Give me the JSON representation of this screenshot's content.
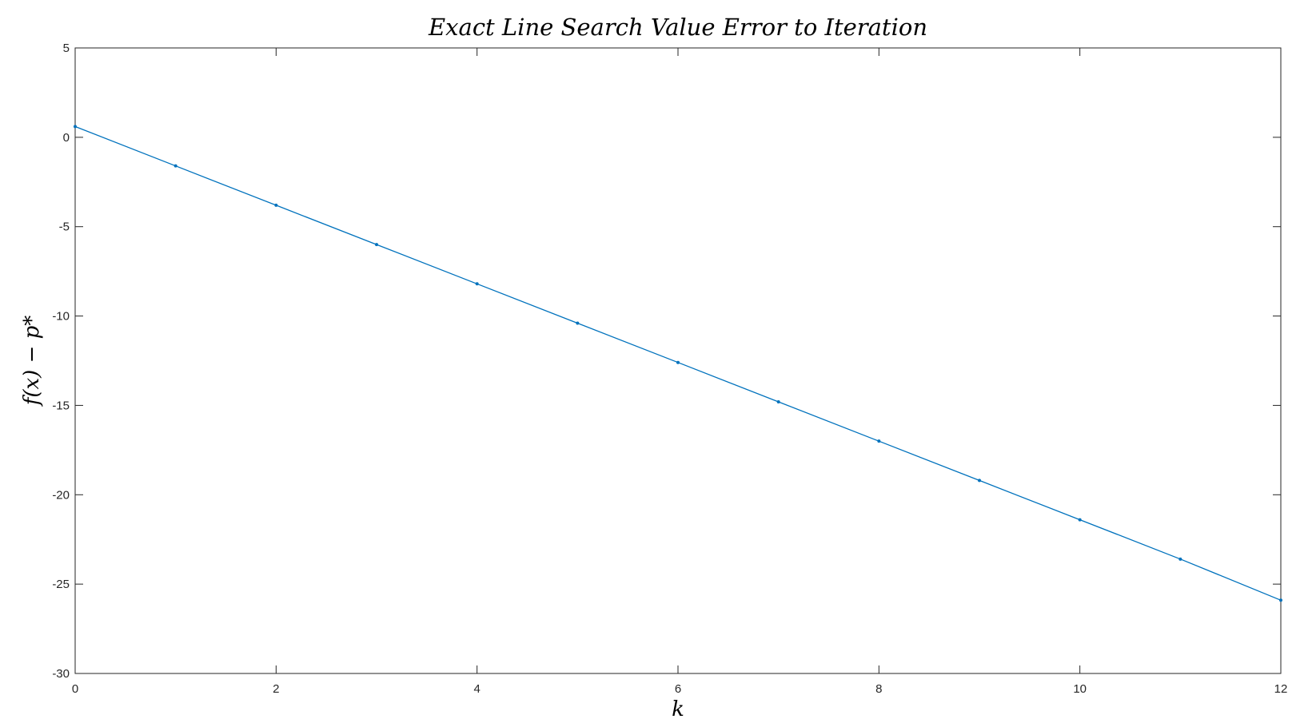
{
  "chart_data": {
    "type": "line",
    "title": "Exact Line Search Value Error to Iteration",
    "xlabel": "k",
    "ylabel": "f(x) − p*",
    "xlim": [
      0,
      12
    ],
    "ylim": [
      -30,
      5
    ],
    "xticks": [
      0,
      2,
      4,
      6,
      8,
      10,
      12
    ],
    "yticks": [
      5,
      0,
      -5,
      -10,
      -15,
      -20,
      -25,
      -30
    ],
    "grid": false,
    "series": [
      {
        "color": "#0072BD",
        "marker": "point",
        "x": [
          0,
          1,
          2,
          3,
          4,
          5,
          6,
          7,
          8,
          9,
          10,
          11,
          12
        ],
        "y": [
          0.6,
          -1.6,
          -3.8,
          -6.0,
          -8.2,
          -10.4,
          -12.6,
          -14.8,
          -17.0,
          -19.2,
          -21.4,
          -23.6,
          -25.9
        ]
      }
    ]
  }
}
